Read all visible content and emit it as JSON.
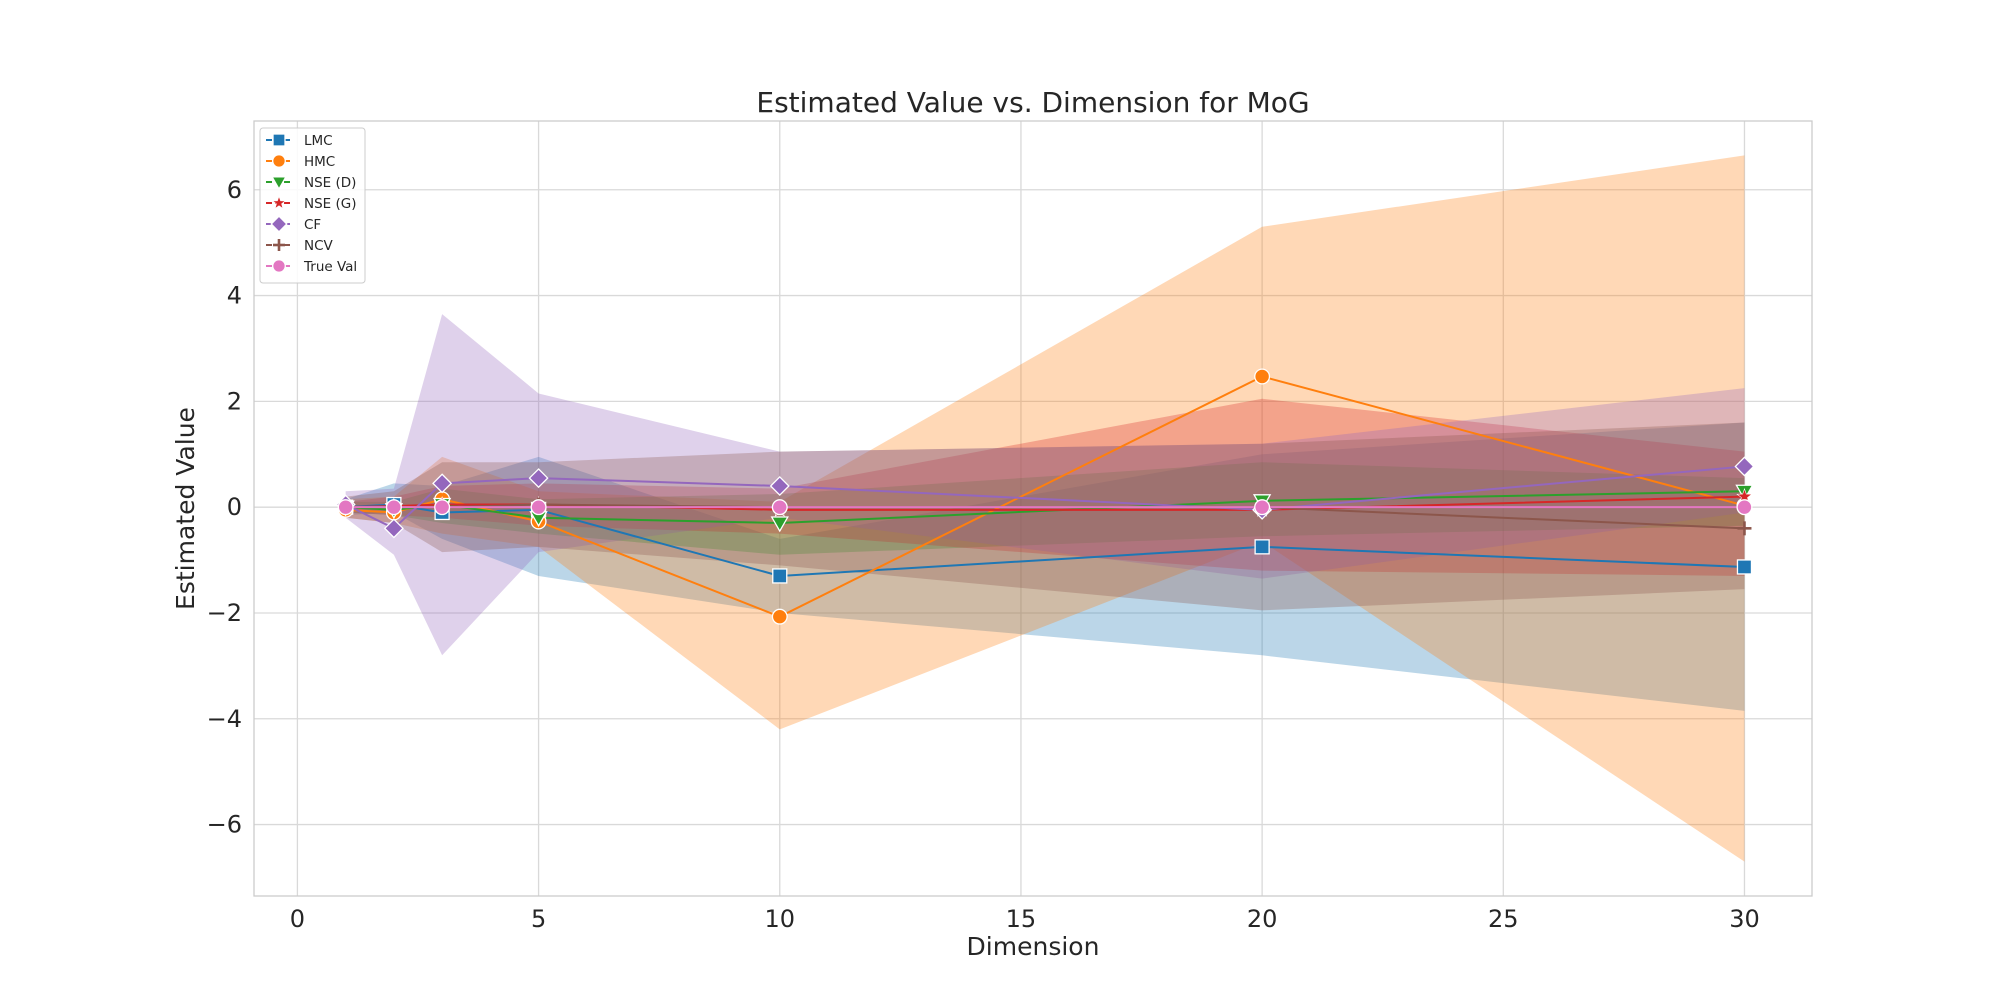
{
  "chart_data": {
    "type": "line",
    "title": "Estimated Value vs. Dimension for MoG",
    "xlabel": "Dimension",
    "ylabel": "Estimated Value",
    "xlim": [
      -0.9,
      31.4
    ],
    "ylim": [
      -7.35,
      7.3
    ],
    "xticks": [
      0,
      5,
      10,
      15,
      20,
      25,
      30
    ],
    "yticks": [
      -6,
      -4,
      -2,
      0,
      2,
      4,
      6
    ],
    "grid": true,
    "legend_position": "top-left",
    "x": [
      1,
      2,
      3,
      5,
      10,
      20,
      30
    ],
    "series": [
      {
        "name": "LMC",
        "color": "#1f77b4",
        "marker": "square",
        "values": [
          0.0,
          0.05,
          -0.1,
          -0.05,
          -1.3,
          -0.75,
          -1.13
        ],
        "lower": [
          -0.15,
          -0.1,
          -0.6,
          -1.3,
          -2.0,
          -2.8,
          -3.85
        ],
        "upper": [
          0.15,
          0.45,
          0.4,
          0.95,
          -0.6,
          1.0,
          1.6
        ]
      },
      {
        "name": "HMC",
        "color": "#ff7f0e",
        "marker": "circle",
        "values": [
          -0.05,
          -0.1,
          0.15,
          -0.27,
          -2.07,
          2.47,
          0.03
        ],
        "lower": [
          -0.2,
          -0.3,
          -0.5,
          -0.75,
          -4.2,
          -0.65,
          -6.7
        ],
        "upper": [
          0.15,
          0.2,
          0.95,
          0.3,
          0.1,
          5.3,
          6.65
        ]
      },
      {
        "name": "NSE (D)",
        "color": "#2ca02c",
        "marker": "triangle-down",
        "values": [
          0.0,
          -0.05,
          0.05,
          -0.2,
          -0.3,
          0.12,
          0.3
        ],
        "lower": [
          -0.1,
          -0.15,
          -0.3,
          -0.5,
          -0.9,
          -0.55,
          -0.35
        ],
        "upper": [
          0.1,
          0.1,
          0.35,
          0.15,
          0.25,
          0.85,
          0.55
        ]
      },
      {
        "name": "NSE (G)",
        "color": "#d62728",
        "marker": "star",
        "values": [
          0.0,
          0.02,
          0.05,
          0.05,
          -0.05,
          -0.05,
          0.2
        ],
        "lower": [
          -0.1,
          -0.15,
          -0.2,
          -0.35,
          -0.5,
          -1.2,
          -1.3
        ],
        "upper": [
          0.1,
          0.2,
          0.4,
          0.45,
          0.35,
          2.05,
          1.05
        ]
      },
      {
        "name": "CF",
        "color": "#9467bd",
        "marker": "diamond",
        "values": [
          0.05,
          -0.4,
          0.45,
          0.55,
          0.4,
          -0.05,
          0.77
        ],
        "lower": [
          -0.2,
          -0.9,
          -2.8,
          -0.85,
          -0.2,
          -1.35,
          -0.1
        ],
        "upper": [
          0.3,
          0.35,
          3.65,
          2.15,
          1.05,
          1.2,
          2.25
        ]
      },
      {
        "name": "NCV",
        "color": "#8c564b",
        "marker": "plus",
        "values": [
          0.0,
          0.0,
          0.0,
          0.05,
          0.0,
          0.0,
          -0.4
        ],
        "lower": [
          -0.2,
          -0.3,
          -0.85,
          -0.75,
          -1.1,
          -1.95,
          -1.55
        ],
        "upper": [
          0.2,
          0.3,
          0.85,
          0.85,
          1.05,
          1.2,
          1.6
        ]
      },
      {
        "name": "True Val",
        "color": "#e377c2",
        "marker": "circle",
        "values": [
          0.0,
          0.0,
          0.0,
          0.0,
          0.0,
          0.0,
          0.0
        ],
        "lower": [
          0.0,
          0.0,
          0.0,
          0.0,
          0.0,
          0.0,
          0.0
        ],
        "upper": [
          0.0,
          0.0,
          0.0,
          0.0,
          0.0,
          0.0,
          0.0
        ]
      }
    ]
  }
}
